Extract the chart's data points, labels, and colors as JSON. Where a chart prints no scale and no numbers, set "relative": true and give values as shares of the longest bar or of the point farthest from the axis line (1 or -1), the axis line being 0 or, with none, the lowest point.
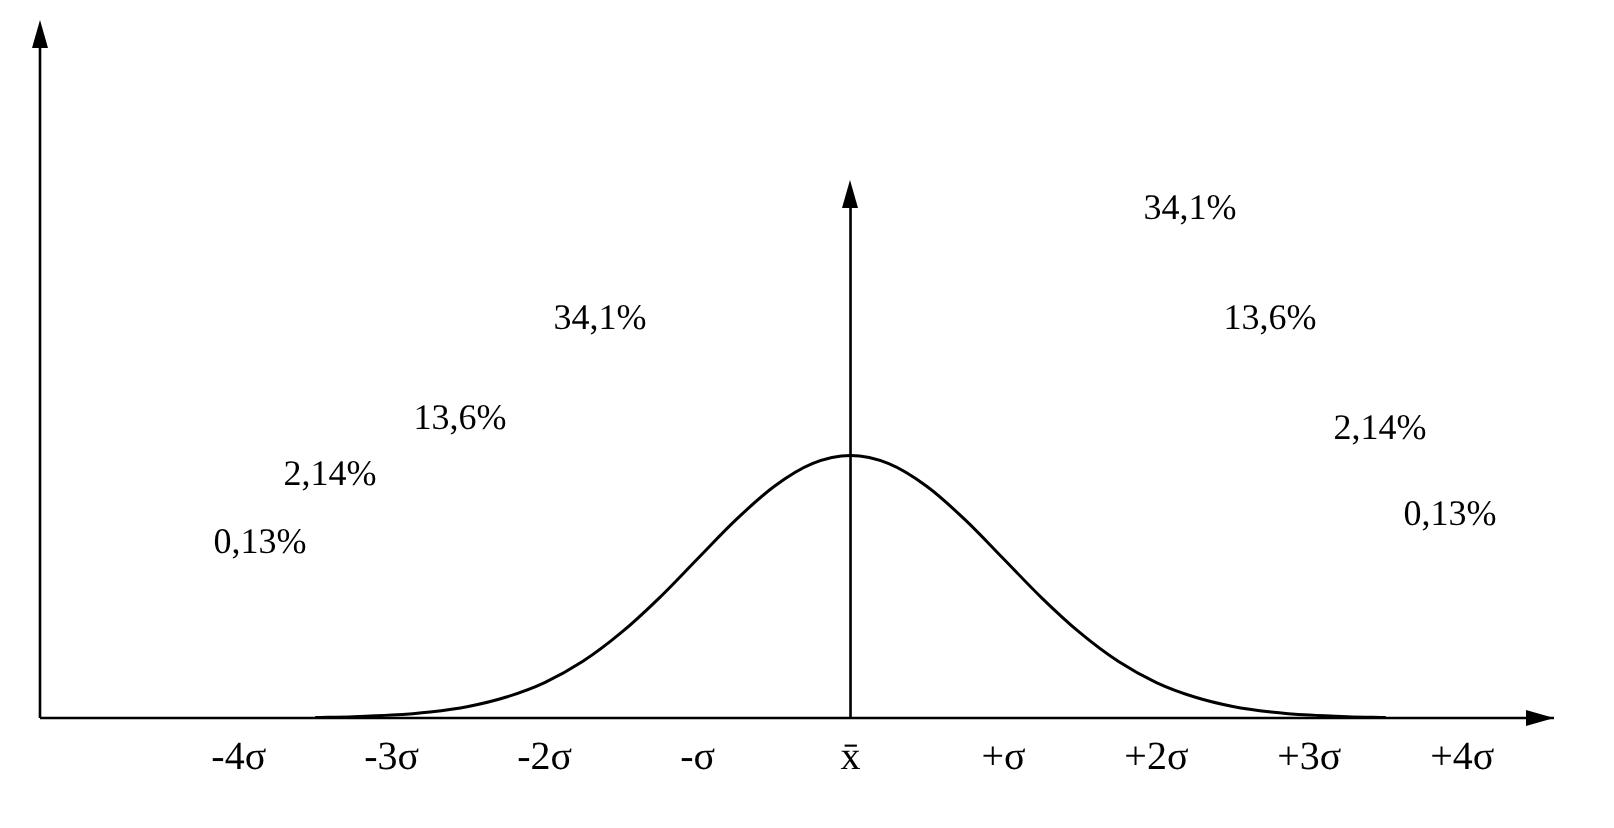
{
  "chart_data": {
    "type": "line",
    "relative": true,
    "color": "#000000",
    "marker": "none",
    "grid": false,
    "legend": false,
    "tick_labels": "x",
    "x": [
      -3.5,
      -3.25,
      -3,
      -2.75,
      -2.5,
      -2.25,
      -2,
      -1.75,
      -1.5,
      -1.25,
      -1,
      -0.75,
      -0.5,
      -0.25,
      0,
      0.25,
      0.5,
      0.75,
      1,
      1.25,
      1.5,
      1.75,
      2,
      2.25,
      2.5,
      2.75,
      3,
      3.25,
      3.5
    ],
    "values": [
      0.002,
      0.005,
      0.011,
      0.023,
      0.044,
      0.08,
      0.135,
      0.216,
      0.325,
      0.458,
      0.607,
      0.755,
      0.882,
      0.969,
      1,
      0.969,
      0.882,
      0.755,
      0.607,
      0.458,
      0.325,
      0.216,
      0.135,
      0.08,
      0.044,
      0.023,
      0.011,
      0.005,
      0.002
    ],
    "xlim": [
      -5.3,
      4.6
    ],
    "xticks": [
      {
        "value": -4,
        "label": "-4σ"
      },
      {
        "value": -3,
        "label": "-3σ"
      },
      {
        "value": -2,
        "label": "-2σ"
      },
      {
        "value": -1,
        "label": "-σ"
      },
      {
        "value": 0,
        "label": "x̄"
      },
      {
        "value": 1,
        "label": "+σ"
      },
      {
        "value": 2,
        "label": "+2σ"
      },
      {
        "value": 3,
        "label": "+3σ"
      },
      {
        "value": 4,
        "label": "+4σ"
      }
    ],
    "ref_lines": [
      {
        "axis": "x",
        "value": 0
      }
    ],
    "annotations": [
      "0,13%",
      "2,14%",
      "13,6%",
      "34,1%",
      "34,1%",
      "13,6%",
      "2,14%",
      "0,13%"
    ]
  }
}
